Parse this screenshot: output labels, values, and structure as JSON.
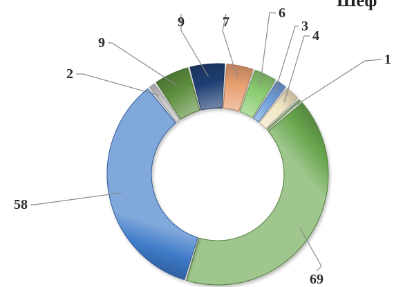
{
  "chart_data": {
    "type": "donut",
    "title": "Шеф",
    "values": [
      1,
      69,
      58,
      2,
      9,
      9,
      7,
      6,
      3,
      4
    ],
    "labels": [
      "1",
      "69",
      "58",
      "2",
      "9",
      "9",
      "7",
      "6",
      "3",
      "4"
    ],
    "colors": [
      "#a8d888",
      "#6aa84f",
      "#3d79c8",
      "#c9c9c9",
      "#5e8f3e",
      "#1f3f73",
      "#e7a070",
      "#8ccc72",
      "#6f9fdc",
      "#f2e6c4"
    ],
    "legend": "none",
    "grid": false
  }
}
